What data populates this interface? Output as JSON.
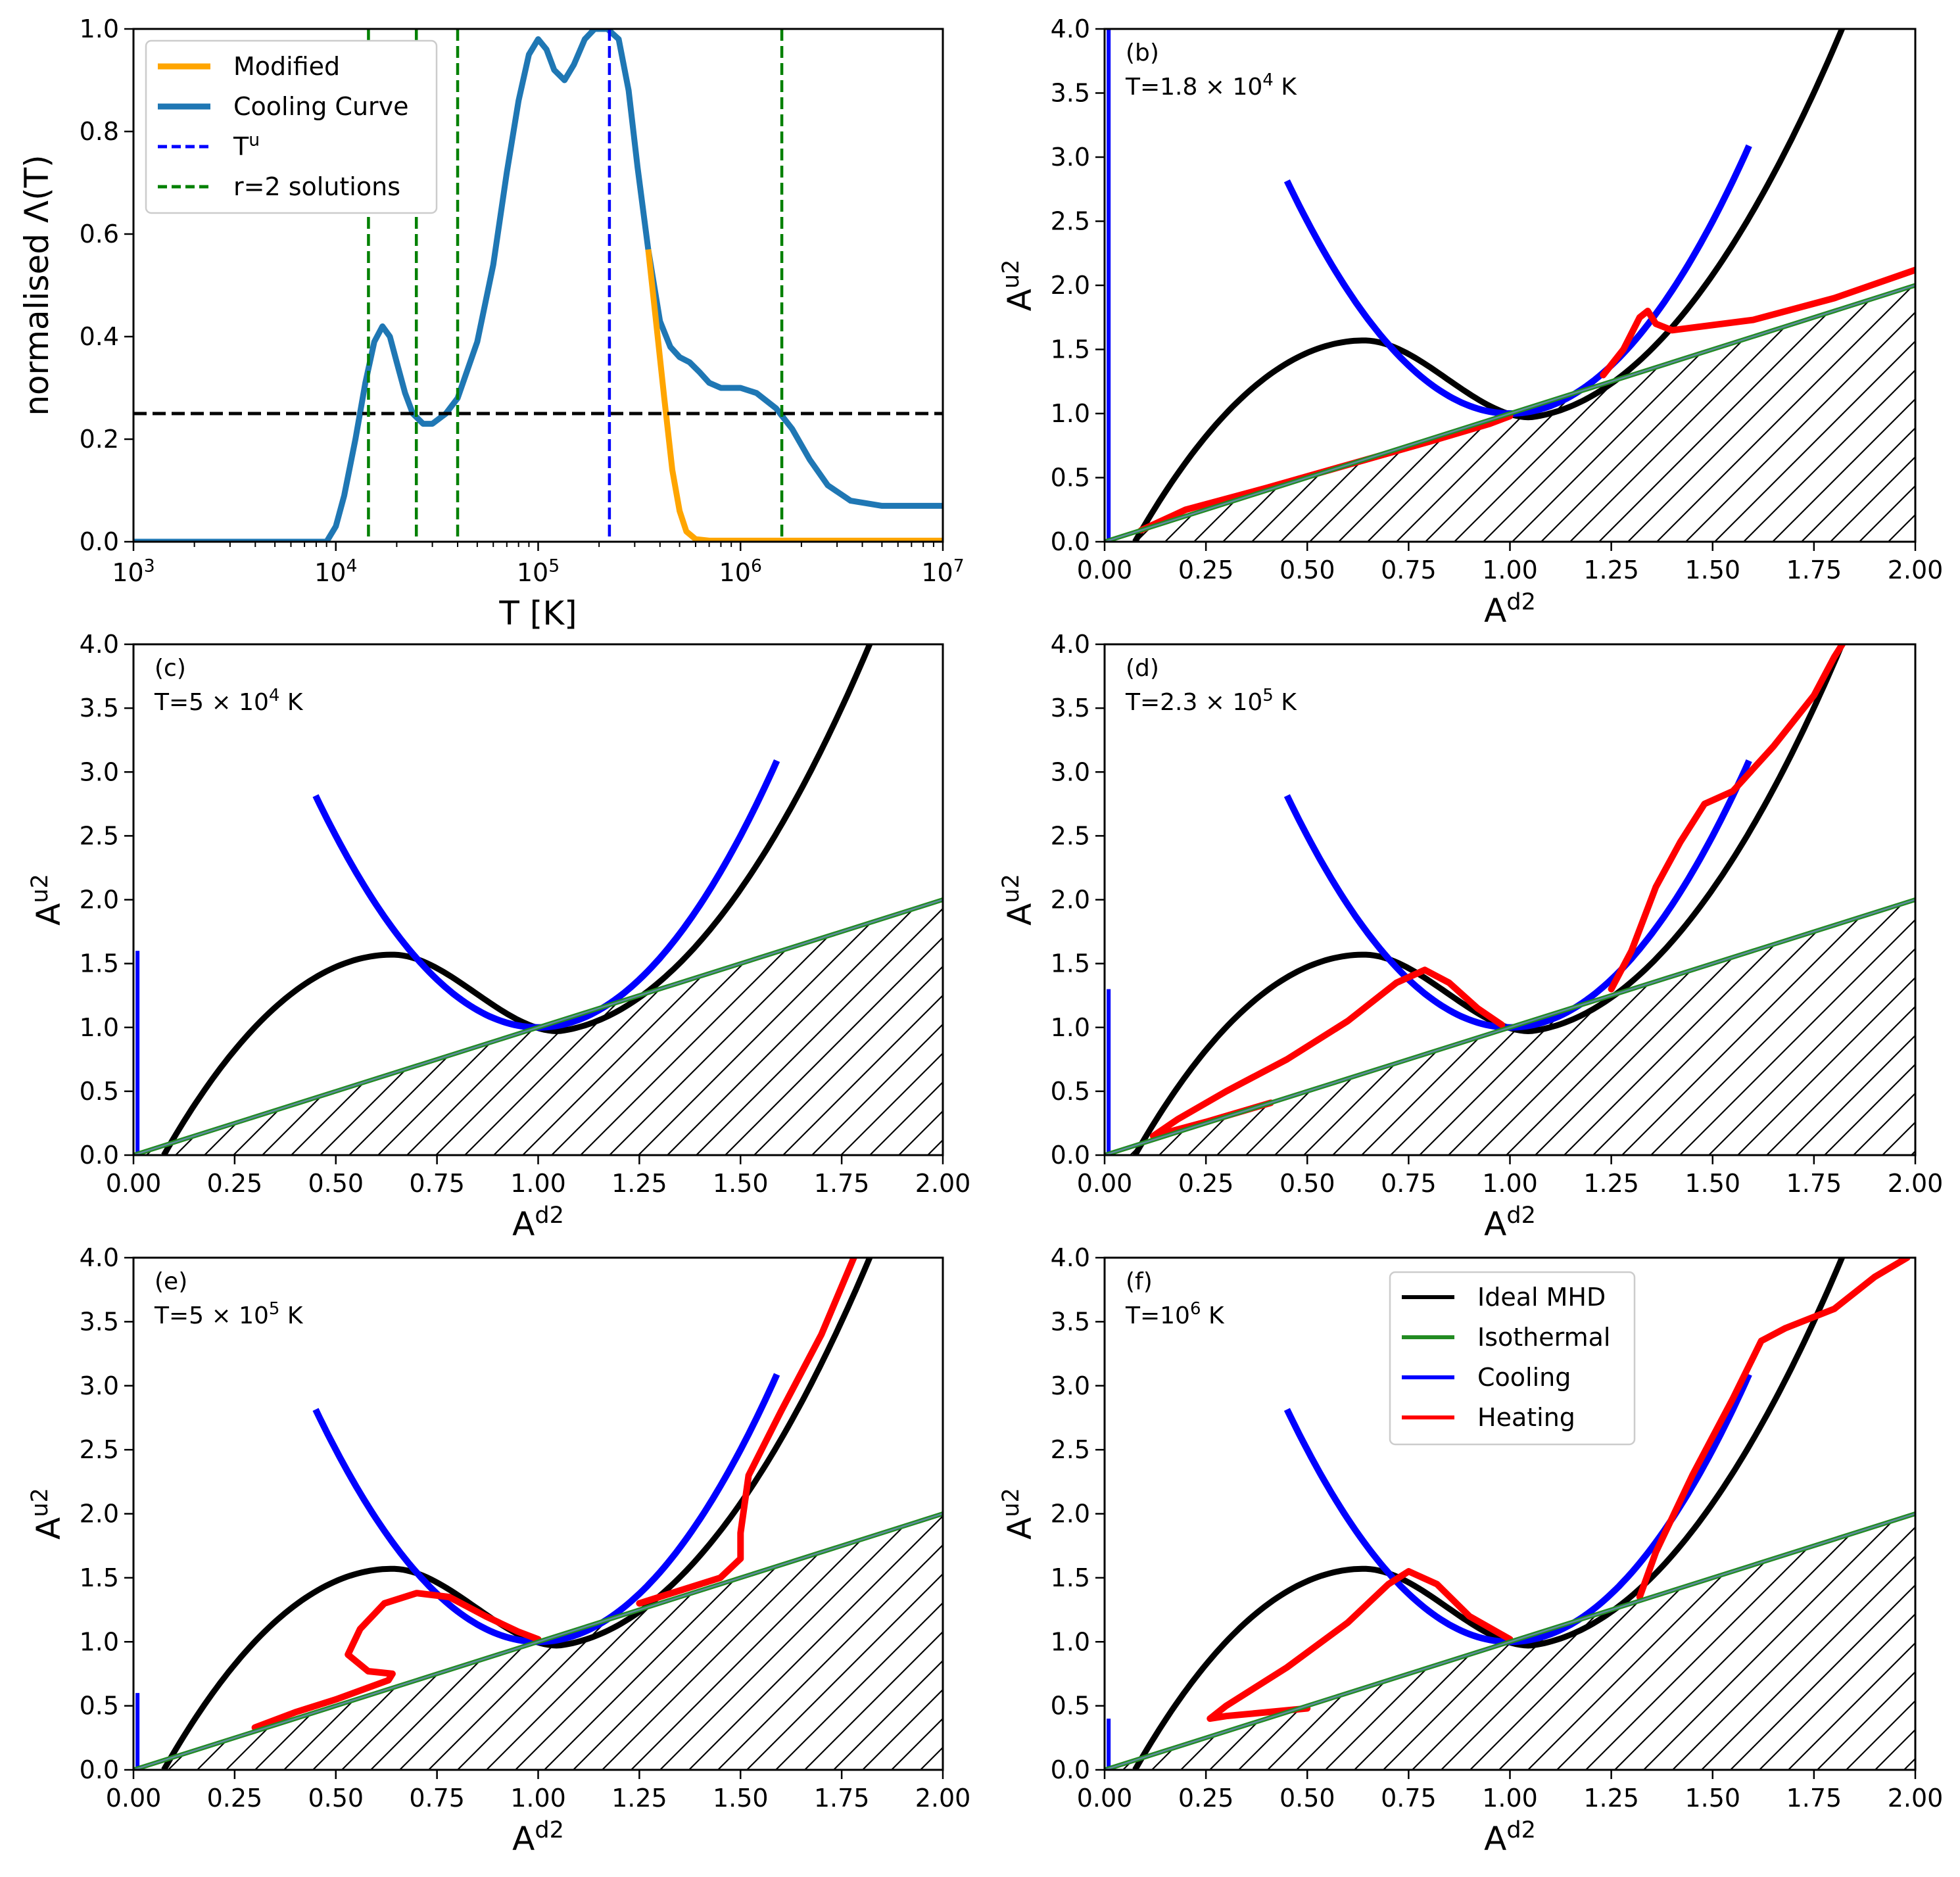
{
  "chart_data": [
    {
      "id": "a",
      "type": "line",
      "xscale": "log",
      "xlim": [
        1000,
        10000000
      ],
      "ylim": [
        0,
        1
      ],
      "xlabel": "T [K]",
      "ylabel": "normalised Λ(T)",
      "xtick_labels": [
        {
          "base": "10",
          "exp": "3"
        },
        {
          "base": "10",
          "exp": "4"
        },
        {
          "base": "10",
          "exp": "5"
        },
        {
          "base": "10",
          "exp": "6"
        },
        {
          "base": "10",
          "exp": "7"
        }
      ],
      "yticks": [
        "0.0",
        "0.2",
        "0.4",
        "0.6",
        "0.8",
        "1.0"
      ],
      "legend": {
        "placement": "upper-left",
        "entries": [
          {
            "label": "Modified",
            "color": "#ffa500",
            "style": "solid"
          },
          {
            "label": "Cooling Curve",
            "color": "#1f77b4",
            "style": "solid"
          },
          {
            "label": "T",
            "sup": "u",
            "color": "#0000ff",
            "style": "dashed"
          },
          {
            "label": "r=2 solutions",
            "color": "#008000",
            "style": "dashed"
          }
        ]
      },
      "series": [
        {
          "name": "Modified",
          "color": "#ffa500",
          "points": [
            [
              350000,
              0.57
            ],
            [
              380000,
              0.44
            ],
            [
              420000,
              0.28
            ],
            [
              460000,
              0.14
            ],
            [
              500000,
              0.06
            ],
            [
              540000,
              0.02
            ],
            [
              600000,
              0.005
            ],
            [
              700000,
              0.002
            ],
            [
              1000000,
              0.002
            ],
            [
              10000000,
              0.002
            ]
          ]
        },
        {
          "name": "Cooling Curve",
          "color": "#1f77b4",
          "points": [
            [
              1000,
              0
            ],
            [
              9000,
              0
            ],
            [
              10000,
              0.03
            ],
            [
              11000,
              0.09
            ],
            [
              12500,
              0.2
            ],
            [
              14000,
              0.31
            ],
            [
              15500,
              0.39
            ],
            [
              17000,
              0.42
            ],
            [
              18500,
              0.4
            ],
            [
              20000,
              0.35
            ],
            [
              22000,
              0.29
            ],
            [
              24000,
              0.25
            ],
            [
              27000,
              0.23
            ],
            [
              30000,
              0.23
            ],
            [
              35000,
              0.25
            ],
            [
              40000,
              0.28
            ],
            [
              50000,
              0.39
            ],
            [
              60000,
              0.54
            ],
            [
              70000,
              0.72
            ],
            [
              80000,
              0.86
            ],
            [
              90000,
              0.95
            ],
            [
              100000,
              0.98
            ],
            [
              110000,
              0.96
            ],
            [
              120000,
              0.92
            ],
            [
              135000,
              0.9
            ],
            [
              150000,
              0.93
            ],
            [
              170000,
              0.98
            ],
            [
              190000,
              1.0
            ],
            [
              220000,
              1.0
            ],
            [
              250000,
              0.98
            ],
            [
              280000,
              0.88
            ],
            [
              310000,
              0.73
            ],
            [
              350000,
              0.57
            ],
            [
              400000,
              0.43
            ],
            [
              450000,
              0.38
            ],
            [
              500000,
              0.36
            ],
            [
              560000,
              0.35
            ],
            [
              630000,
              0.33
            ],
            [
              700000,
              0.31
            ],
            [
              800000,
              0.3
            ],
            [
              1000000,
              0.3
            ],
            [
              1200000,
              0.29
            ],
            [
              1500000,
              0.26
            ],
            [
              1800000,
              0.22
            ],
            [
              2200000,
              0.16
            ],
            [
              2700000,
              0.11
            ],
            [
              3500000,
              0.08
            ],
            [
              5000000,
              0.07
            ],
            [
              7000000,
              0.07
            ],
            [
              10000000,
              0.07
            ]
          ]
        }
      ],
      "hlines": [
        {
          "y": 0.25,
          "color": "#000000",
          "style": "dashed"
        }
      ],
      "vlines": [
        {
          "x": 225000,
          "color": "#0000ff",
          "style": "dashed"
        },
        {
          "x": 14500,
          "color": "#008000",
          "style": "dashed"
        },
        {
          "x": 25000,
          "color": "#008000",
          "style": "dashed"
        },
        {
          "x": 40000,
          "color": "#008000",
          "style": "dashed"
        },
        {
          "x": 1600000,
          "color": "#008000",
          "style": "dashed"
        }
      ]
    },
    {
      "id": "b",
      "type": "line",
      "xlim": [
        0,
        2
      ],
      "ylim": [
        0,
        4
      ],
      "xlabel": "A",
      "xlabel_sup": "d2",
      "ylabel": "A",
      "ylabel_sup": "u2",
      "xticks": [
        "0.00",
        "0.25",
        "0.50",
        "0.75",
        "1.00",
        "1.25",
        "1.50",
        "1.75",
        "2.00"
      ],
      "yticks": [
        "0.0",
        "0.5",
        "1.0",
        "1.5",
        "2.0",
        "2.5",
        "3.0",
        "3.5",
        "4.0"
      ],
      "panel_label": "(b)",
      "annotation": {
        "prefix": "T=1.8 × 10",
        "sup": "4",
        "suffix": " K"
      },
      "cooling_spike_top": 4.0,
      "heating": [
        [
          [
            0.09,
            0.09
          ],
          [
            0.2,
            0.25
          ],
          [
            0.4,
            0.42
          ],
          [
            0.6,
            0.6
          ],
          [
            0.8,
            0.78
          ],
          [
            0.95,
            0.92
          ],
          [
            1.0,
            0.98
          ]
        ],
        [
          [
            1.23,
            1.3
          ],
          [
            1.28,
            1.5
          ],
          [
            1.32,
            1.75
          ],
          [
            1.34,
            1.8
          ],
          [
            1.36,
            1.7
          ],
          [
            1.4,
            1.65
          ],
          [
            1.6,
            1.73
          ],
          [
            1.8,
            1.9
          ],
          [
            2.0,
            2.12
          ]
        ]
      ]
    },
    {
      "id": "c",
      "type": "line",
      "xlim": [
        0,
        2
      ],
      "ylim": [
        0,
        4
      ],
      "xlabel": "A",
      "xlabel_sup": "d2",
      "ylabel": "A",
      "ylabel_sup": "u2",
      "xticks": [
        "0.00",
        "0.25",
        "0.50",
        "0.75",
        "1.00",
        "1.25",
        "1.50",
        "1.75",
        "2.00"
      ],
      "yticks": [
        "0.0",
        "0.5",
        "1.0",
        "1.5",
        "2.0",
        "2.5",
        "3.0",
        "3.5",
        "4.0"
      ],
      "panel_label": "(c)",
      "annotation": {
        "prefix": "T=5 × 10",
        "sup": "4",
        "suffix": " K"
      },
      "cooling_spike_top": 1.6,
      "heating": []
    },
    {
      "id": "d",
      "type": "line",
      "xlim": [
        0,
        2
      ],
      "ylim": [
        0,
        4
      ],
      "xlabel": "A",
      "xlabel_sup": "d2",
      "ylabel": "A",
      "ylabel_sup": "u2",
      "xticks": [
        "0.00",
        "0.25",
        "0.50",
        "0.75",
        "1.00",
        "1.25",
        "1.50",
        "1.75",
        "2.00"
      ],
      "yticks": [
        "0.0",
        "0.5",
        "1.0",
        "1.5",
        "2.0",
        "2.5",
        "3.0",
        "3.5",
        "4.0"
      ],
      "panel_label": "(d)",
      "annotation": {
        "prefix": "T=2.3 × 10",
        "sup": "5",
        "suffix": " K"
      },
      "cooling_spike_top": 1.3,
      "heating": [
        [
          [
            0.12,
            0.15
          ],
          [
            0.18,
            0.28
          ],
          [
            0.3,
            0.5
          ],
          [
            0.45,
            0.75
          ],
          [
            0.6,
            1.05
          ],
          [
            0.72,
            1.35
          ],
          [
            0.79,
            1.45
          ],
          [
            0.85,
            1.35
          ],
          [
            0.92,
            1.15
          ],
          [
            0.98,
            1.02
          ]
        ],
        [
          [
            0.12,
            0.15
          ],
          [
            0.25,
            0.26
          ],
          [
            0.41,
            0.41
          ]
        ],
        [
          [
            1.25,
            1.3
          ],
          [
            1.3,
            1.6
          ],
          [
            1.36,
            2.1
          ],
          [
            1.42,
            2.45
          ],
          [
            1.48,
            2.75
          ],
          [
            1.55,
            2.85
          ],
          [
            1.65,
            3.2
          ],
          [
            1.75,
            3.6
          ],
          [
            1.8,
            3.9
          ],
          [
            1.82,
            4.0
          ]
        ]
      ]
    },
    {
      "id": "e",
      "type": "line",
      "xlim": [
        0,
        2
      ],
      "ylim": [
        0,
        4
      ],
      "xlabel": "A",
      "xlabel_sup": "d2",
      "ylabel": "A",
      "ylabel_sup": "u2",
      "xticks": [
        "0.00",
        "0.25",
        "0.50",
        "0.75",
        "1.00",
        "1.25",
        "1.50",
        "1.75",
        "2.00"
      ],
      "yticks": [
        "0.0",
        "0.5",
        "1.0",
        "1.5",
        "2.0",
        "2.5",
        "3.0",
        "3.5",
        "4.0"
      ],
      "panel_label": "(e)",
      "annotation": {
        "prefix": "T=5 × 10",
        "sup": "5",
        "suffix": " K"
      },
      "cooling_spike_top": 0.6,
      "heating": [
        [
          [
            0.3,
            0.33
          ],
          [
            0.4,
            0.45
          ],
          [
            0.5,
            0.55
          ],
          [
            0.63,
            0.7
          ],
          [
            0.64,
            0.75
          ],
          [
            0.58,
            0.77
          ],
          [
            0.53,
            0.9
          ],
          [
            0.56,
            1.1
          ],
          [
            0.62,
            1.3
          ],
          [
            0.7,
            1.38
          ],
          [
            0.78,
            1.35
          ],
          [
            0.87,
            1.2
          ],
          [
            0.95,
            1.08
          ],
          [
            1.0,
            1.02
          ]
        ],
        [
          [
            1.25,
            1.3
          ],
          [
            1.35,
            1.4
          ],
          [
            1.45,
            1.5
          ],
          [
            1.5,
            1.65
          ],
          [
            1.5,
            1.85
          ],
          [
            1.52,
            2.3
          ],
          [
            1.6,
            2.8
          ],
          [
            1.7,
            3.4
          ],
          [
            1.78,
            4.0
          ]
        ]
      ]
    },
    {
      "id": "f",
      "type": "line",
      "xlim": [
        0,
        2
      ],
      "ylim": [
        0,
        4
      ],
      "xlabel": "A",
      "xlabel_sup": "d2",
      "ylabel": "A",
      "ylabel_sup": "u2",
      "xticks": [
        "0.00",
        "0.25",
        "0.50",
        "0.75",
        "1.00",
        "1.25",
        "1.50",
        "1.75",
        "2.00"
      ],
      "yticks": [
        "0.0",
        "0.5",
        "1.0",
        "1.5",
        "2.0",
        "2.5",
        "3.0",
        "3.5",
        "4.0"
      ],
      "panel_label": "(f)",
      "annotation": {
        "prefix": "T=10",
        "sup": "6",
        "suffix": " K"
      },
      "cooling_spike_top": 0.4,
      "legend": {
        "placement": "upper-center",
        "entries": [
          {
            "label": "Ideal MHD",
            "color": "#000000"
          },
          {
            "label": "Isothermal",
            "color": "#228b22"
          },
          {
            "label": "Cooling",
            "color": "#0000ff"
          },
          {
            "label": "Heating",
            "color": "#ff0000"
          }
        ]
      },
      "heating": [
        [
          [
            0.5,
            0.48
          ],
          [
            0.4,
            0.45
          ],
          [
            0.3,
            0.42
          ],
          [
            0.26,
            0.4
          ],
          [
            0.3,
            0.5
          ],
          [
            0.45,
            0.8
          ],
          [
            0.6,
            1.15
          ],
          [
            0.7,
            1.45
          ],
          [
            0.75,
            1.55
          ],
          [
            0.82,
            1.45
          ],
          [
            0.9,
            1.2
          ],
          [
            1.0,
            1.02
          ]
        ],
        [
          [
            1.32,
            1.35
          ],
          [
            1.36,
            1.7
          ],
          [
            1.45,
            2.3
          ],
          [
            1.55,
            2.9
          ],
          [
            1.62,
            3.35
          ],
          [
            1.68,
            3.45
          ],
          [
            1.8,
            3.6
          ],
          [
            1.9,
            3.85
          ],
          [
            1.98,
            4.0
          ]
        ]
      ]
    }
  ]
}
